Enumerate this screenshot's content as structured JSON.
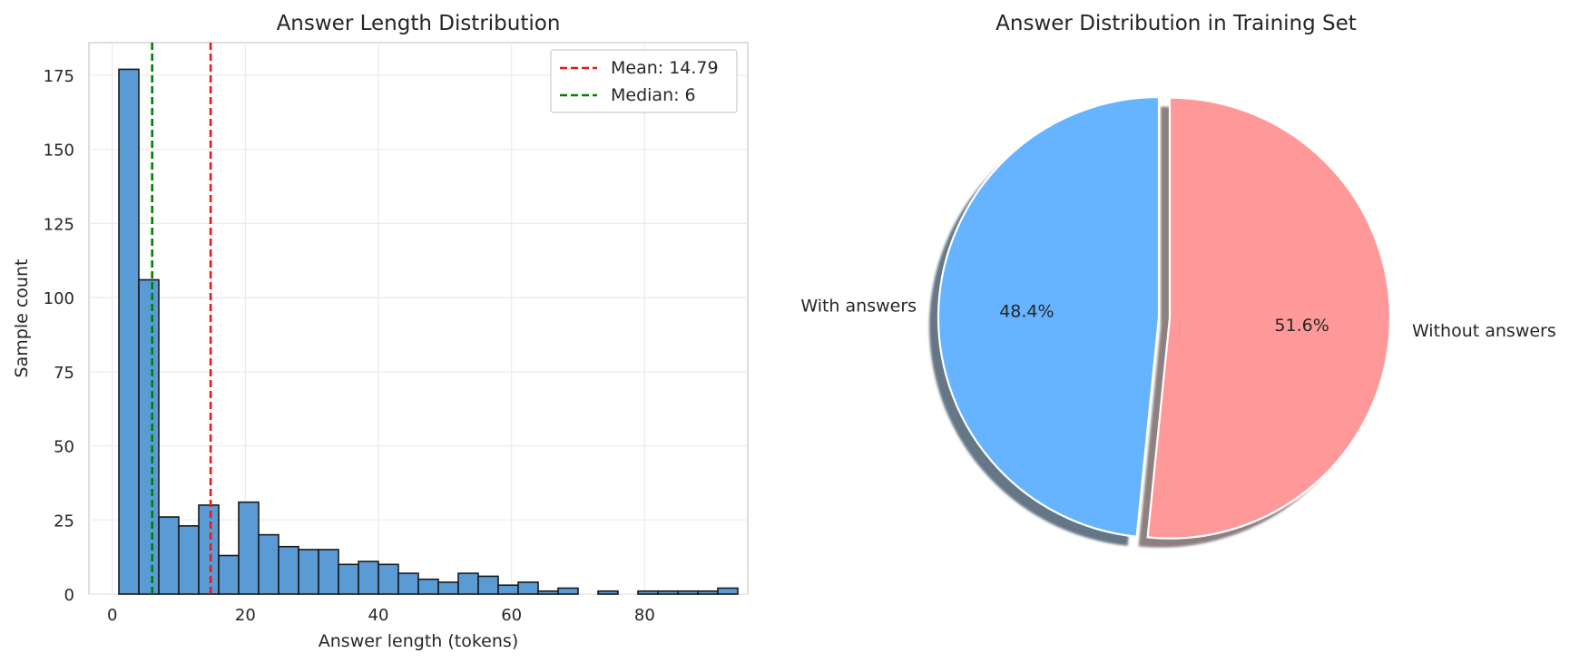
{
  "figure": {
    "histogram": {
      "title": "Answer Length Distribution",
      "xlabel": "Answer length (tokens)",
      "ylabel": "Sample count",
      "legend": {
        "mean_label": "Mean: 14.79",
        "median_label": "Median: 6"
      }
    },
    "pie": {
      "title": "Answer Distribution in Training Set"
    }
  },
  "chart_data": [
    {
      "type": "bar",
      "subtype": "histogram",
      "title": "Answer Length Distribution",
      "xlabel": "Answer length (tokens)",
      "ylabel": "Sample count",
      "xlim": [
        -3.5,
        95.5
      ],
      "ylim": [
        0,
        186
      ],
      "xticks": [
        0,
        20,
        40,
        60,
        80
      ],
      "yticks": [
        0,
        25,
        50,
        75,
        100,
        125,
        150,
        175
      ],
      "grid": true,
      "bin_start": 1,
      "bin_width": 3,
      "counts": [
        177,
        106,
        26,
        23,
        30,
        13,
        31,
        20,
        16,
        15,
        15,
        10,
        11,
        10,
        7,
        5,
        4,
        7,
        6,
        3,
        4,
        1,
        2,
        0,
        1,
        0,
        1,
        1,
        1,
        1,
        2
      ],
      "bar_color": "#5b9bd5",
      "edge_color": "#1a1a1a",
      "reference_lines": [
        {
          "name": "Mean: 14.79",
          "x": 14.79,
          "color": "#e31a1c",
          "style": "dashed"
        },
        {
          "name": "Median: 6",
          "x": 6,
          "color": "#008000",
          "style": "dashed"
        }
      ],
      "legend_position": "top-right"
    },
    {
      "type": "pie",
      "title": "Answer Distribution in Training Set",
      "labels": [
        "With answers",
        "Without answers"
      ],
      "values": [
        48.4,
        51.6
      ],
      "value_labels": [
        "48.4%",
        "51.6%"
      ],
      "colors": [
        "#66b3ff",
        "#ff9999"
      ],
      "exploded": "Without answers",
      "shadow": true,
      "start_angle": 90
    }
  ]
}
